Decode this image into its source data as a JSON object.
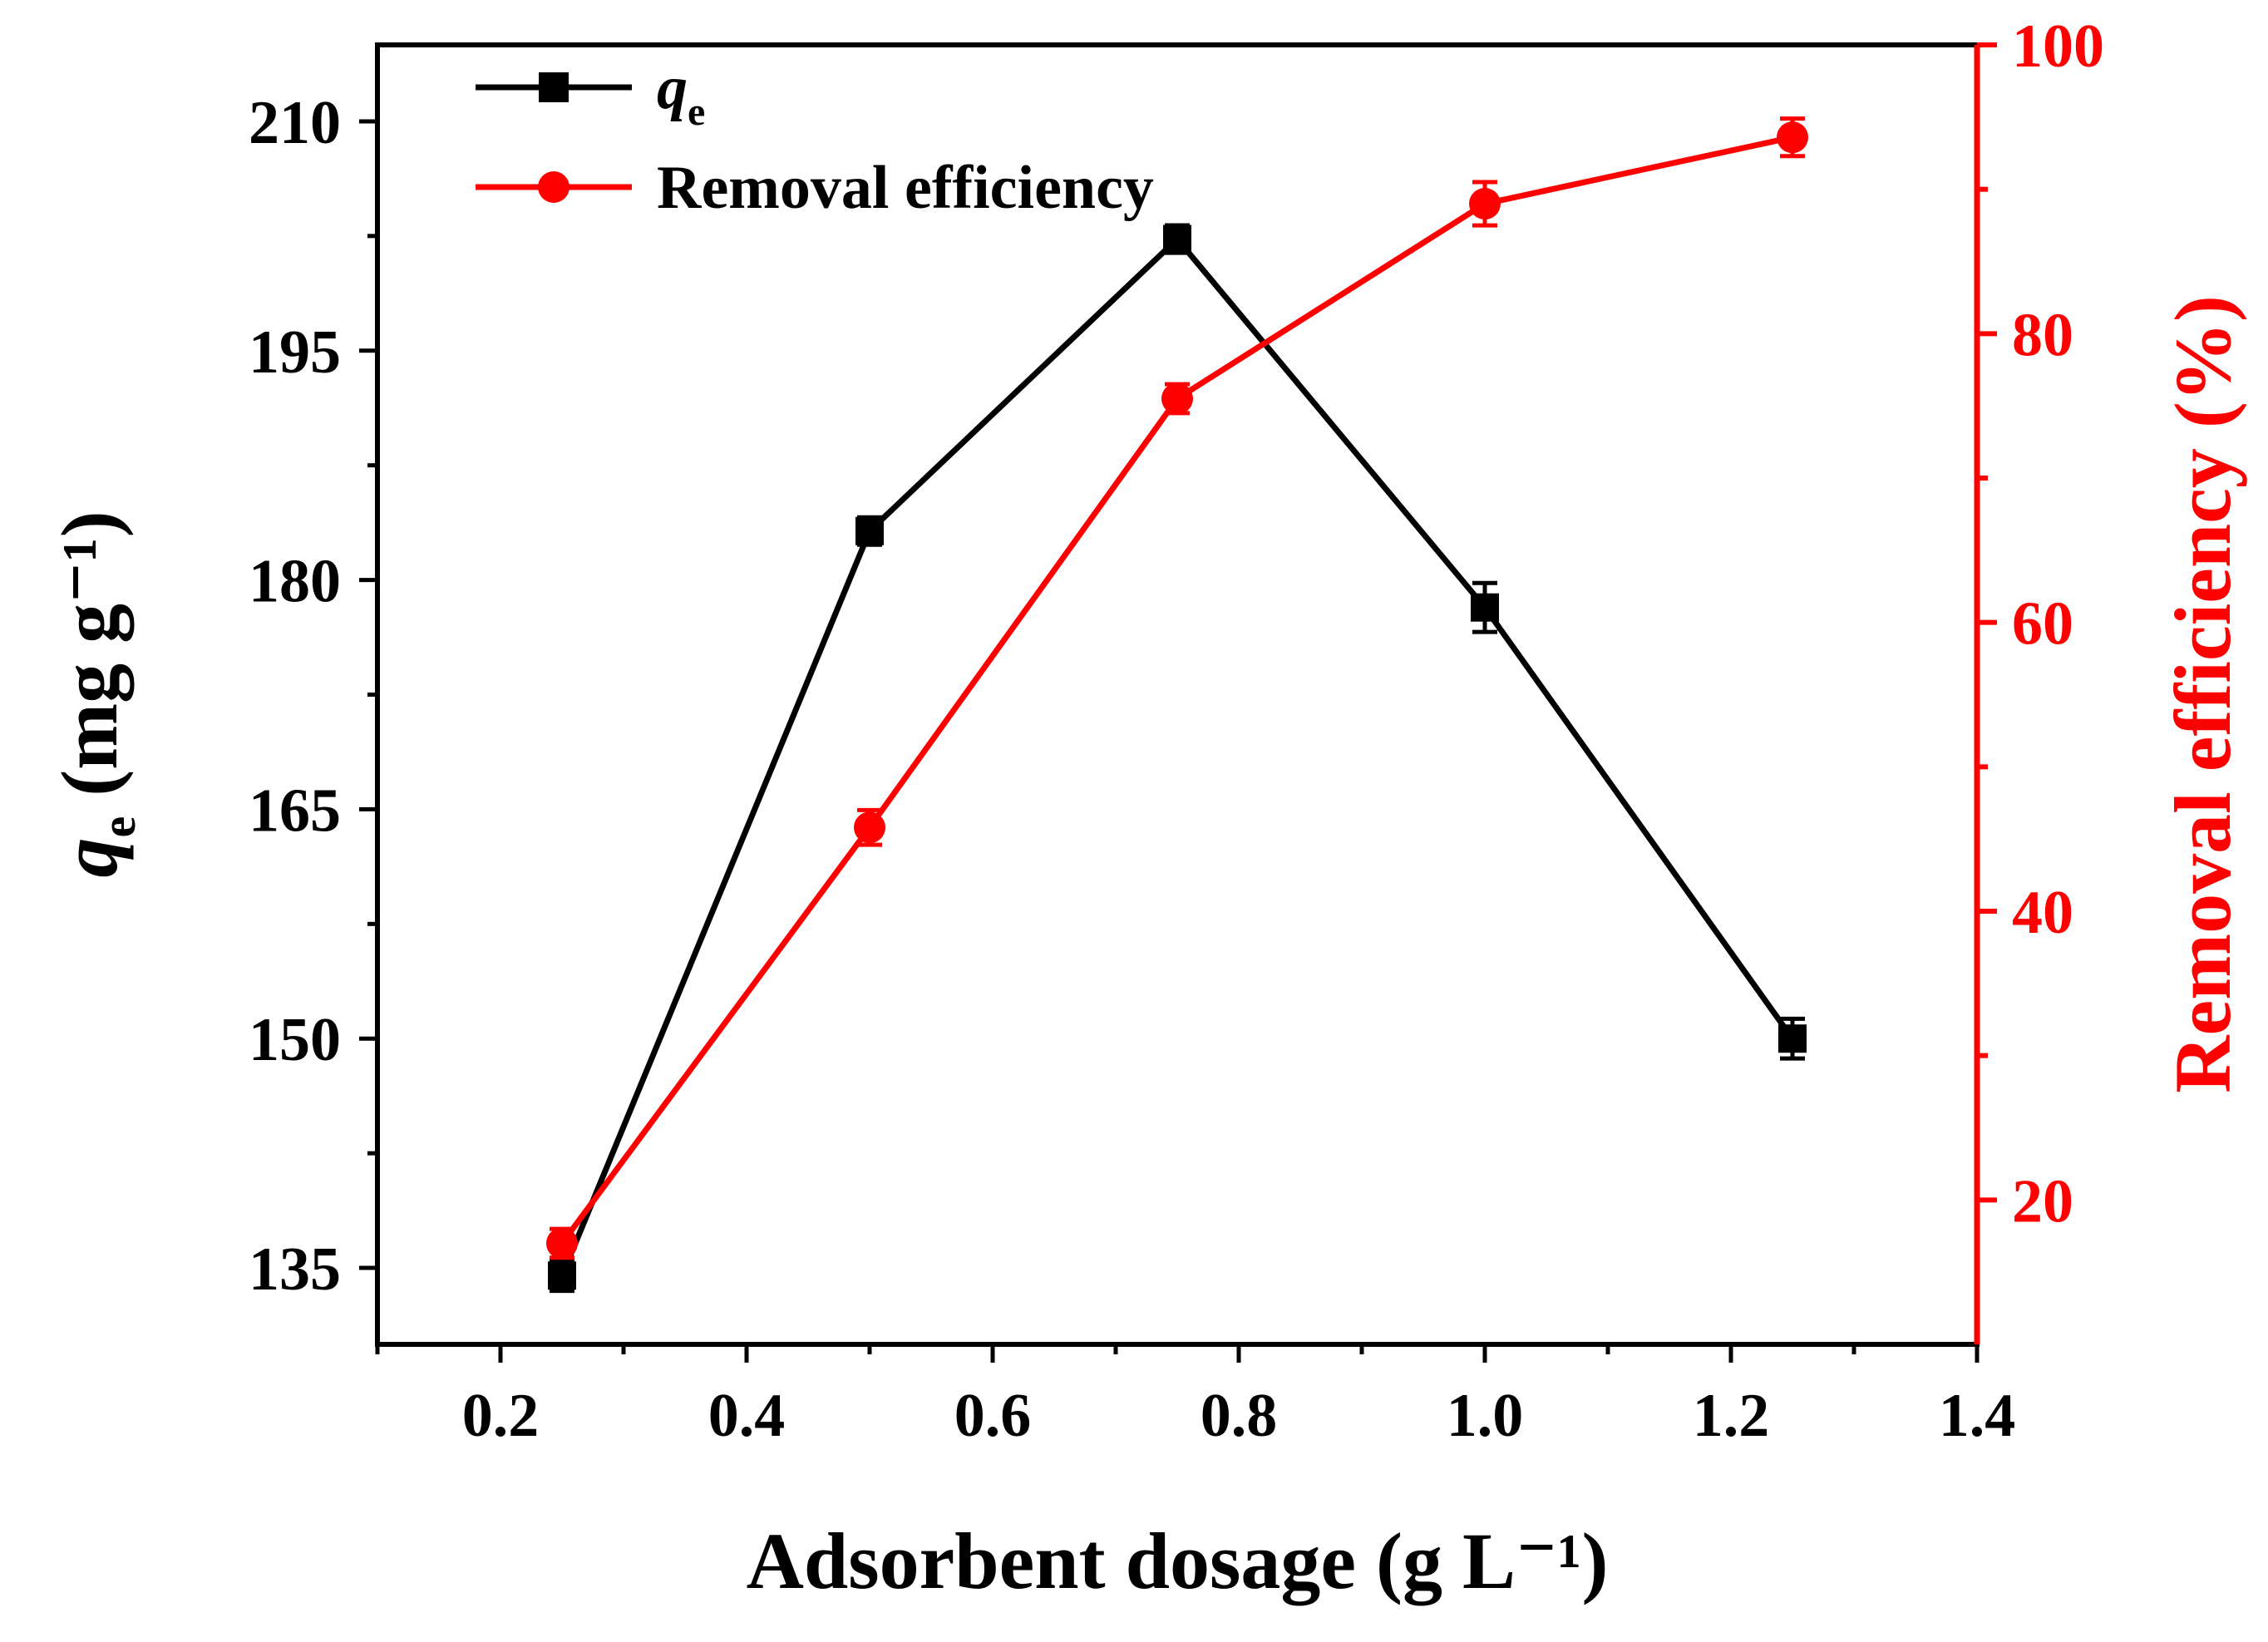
{
  "chart_data": {
    "type": "line",
    "xlabel": "Adsorbent dosage (g L⁻¹)",
    "ylabel": "q",
    "ylabel_sub": "e",
    "ylabel_units": " (mg g⁻¹)",
    "y2label": "Removal efficiency (%)",
    "x_ticks": [
      "0.2",
      "0.4",
      "0.6",
      "0.8",
      "1.0",
      "1.2",
      "1.4"
    ],
    "y_ticks": [
      "135",
      "150",
      "165",
      "180",
      "195",
      "210"
    ],
    "y2_ticks": [
      "20",
      "40",
      "60",
      "80",
      "100"
    ],
    "xlim": [
      0.1,
      1.4
    ],
    "ylim": [
      130,
      215
    ],
    "y2lim": [
      10,
      100
    ],
    "x": [
      0.25,
      0.5,
      0.75,
      1.0,
      1.25
    ],
    "series": [
      {
        "name": "q",
        "name_sub": "e",
        "axis": "left",
        "marker": "square",
        "color": "#000000",
        "values": [
          134.5,
          183.2,
          202.3,
          178.2,
          150.0
        ],
        "errors": [
          1.0,
          0.9,
          0.9,
          1.6,
          1.3
        ]
      },
      {
        "name": "Removal efficiency",
        "axis": "right",
        "marker": "circle",
        "color": "#ff0000",
        "values": [
          17.0,
          45.8,
          75.5,
          89.0,
          93.6
        ],
        "errors": [
          1.0,
          1.2,
          1.0,
          1.5,
          1.3
        ]
      }
    ]
  }
}
